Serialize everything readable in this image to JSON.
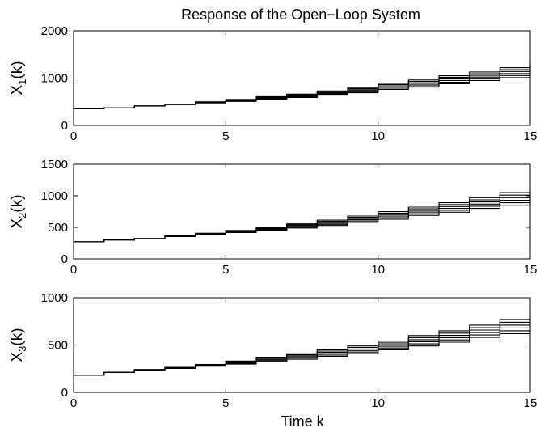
{
  "figure_title": "Response of the Open−Loop System",
  "x_axis_label": "Time k",
  "chart_data": [
    {
      "type": "line",
      "subtype": "step",
      "title": "Response of the Open−Loop System",
      "xlabel": "",
      "ylabel_main": "X",
      "ylabel_sub": "1",
      "ylabel_tail": "(k)",
      "xlim": [
        0,
        15
      ],
      "ylim": [
        0,
        2000
      ],
      "xticks": [
        0,
        5,
        10,
        15
      ],
      "yticks": [
        0,
        1000,
        2000
      ],
      "grid": false,
      "start": {
        "x": 0,
        "y": 350
      },
      "steps": [
        {
          "x": 1,
          "ys": [
            370
          ]
        },
        {
          "x": 2,
          "ys": [
            408,
            412
          ]
        },
        {
          "x": 3,
          "ys": [
            440,
            446,
            452
          ]
        },
        {
          "x": 4,
          "ys": [
            475,
            482,
            490,
            498
          ]
        },
        {
          "x": 5,
          "ys": [
            508,
            518,
            528,
            538,
            548
          ]
        },
        {
          "x": 6,
          "ys": [
            545,
            558,
            570,
            582,
            595,
            608
          ]
        },
        {
          "x": 7,
          "ys": [
            590,
            605,
            620,
            634,
            648,
            662
          ]
        },
        {
          "x": 8,
          "ys": [
            640,
            658,
            676,
            694,
            712,
            730
          ]
        },
        {
          "x": 9,
          "ys": [
            690,
            712,
            734,
            756,
            778,
            800
          ]
        },
        {
          "x": 10,
          "ys": [
            760,
            786,
            812,
            838,
            864,
            890
          ]
        },
        {
          "x": 11,
          "ys": [
            810,
            840,
            870,
            900,
            930,
            960
          ]
        },
        {
          "x": 12,
          "ys": [
            880,
            914,
            948,
            982,
            1016,
            1050
          ]
        },
        {
          "x": 13,
          "ys": [
            950,
            986,
            1022,
            1058,
            1094,
            1130
          ]
        },
        {
          "x": 14,
          "ys": [
            1010,
            1055,
            1095,
            1140,
            1180,
            1220
          ]
        },
        {
          "x": 15,
          "ys": [
            1110,
            1160,
            1210,
            1260,
            1310,
            1360
          ]
        }
      ]
    },
    {
      "type": "line",
      "subtype": "step",
      "xlabel": "",
      "ylabel_main": "X",
      "ylabel_sub": "2",
      "ylabel_tail": "(k)",
      "xlim": [
        0,
        15
      ],
      "ylim": [
        0,
        1500
      ],
      "xticks": [
        0,
        5,
        10,
        15
      ],
      "yticks": [
        0,
        500,
        1000,
        1500
      ],
      "grid": false,
      "start": {
        "x": 0,
        "y": 270
      },
      "steps": [
        {
          "x": 1,
          "ys": [
            300
          ]
        },
        {
          "x": 2,
          "ys": [
            318,
            322
          ]
        },
        {
          "x": 3,
          "ys": [
            352,
            358,
            364
          ]
        },
        {
          "x": 4,
          "ys": [
            385,
            392,
            398,
            405
          ]
        },
        {
          "x": 5,
          "ys": [
            418,
            426,
            434,
            442,
            450
          ]
        },
        {
          "x": 6,
          "ys": [
            450,
            460,
            470,
            480,
            490,
            500
          ]
        },
        {
          "x": 7,
          "ys": [
            490,
            503,
            516,
            529,
            542,
            555
          ]
        },
        {
          "x": 8,
          "ys": [
            530,
            547,
            564,
            581,
            598,
            615
          ]
        },
        {
          "x": 9,
          "ys": [
            580,
            600,
            620,
            640,
            660,
            680
          ]
        },
        {
          "x": 10,
          "ys": [
            630,
            654,
            678,
            702,
            726,
            750
          ]
        },
        {
          "x": 11,
          "ys": [
            690,
            716,
            742,
            768,
            794,
            820
          ]
        },
        {
          "x": 12,
          "ys": [
            740,
            770,
            800,
            830,
            860,
            890
          ]
        },
        {
          "x": 13,
          "ys": [
            800,
            834,
            868,
            902,
            936,
            970
          ]
        },
        {
          "x": 14,
          "ys": [
            850,
            890,
            930,
            970,
            1010,
            1050
          ]
        },
        {
          "x": 15,
          "ys": [
            910,
            950,
            990,
            1030,
            1065,
            1100
          ]
        }
      ]
    },
    {
      "type": "line",
      "subtype": "step",
      "xlabel": "Time k",
      "ylabel_main": "X",
      "ylabel_sub": "3",
      "ylabel_tail": "(k)",
      "xlim": [
        0,
        15
      ],
      "ylim": [
        0,
        1000
      ],
      "xticks": [
        0,
        5,
        10,
        15
      ],
      "yticks": [
        0,
        500,
        1000
      ],
      "grid": false,
      "start": {
        "x": 0,
        "y": 180
      },
      "steps": [
        {
          "x": 1,
          "ys": [
            212
          ]
        },
        {
          "x": 2,
          "ys": [
            236,
            240
          ]
        },
        {
          "x": 3,
          "ys": [
            252,
            258,
            264
          ]
        },
        {
          "x": 4,
          "ys": [
            276,
            282,
            288,
            294
          ]
        },
        {
          "x": 5,
          "ys": [
            298,
            306,
            314,
            322,
            330
          ]
        },
        {
          "x": 6,
          "ys": [
            322,
            332,
            342,
            352,
            362,
            372
          ]
        },
        {
          "x": 7,
          "ys": [
            350,
            362,
            374,
            386,
            398,
            408
          ]
        },
        {
          "x": 8,
          "ys": [
            380,
            394,
            408,
            422,
            436,
            450
          ]
        },
        {
          "x": 9,
          "ys": [
            410,
            426,
            442,
            458,
            474,
            490
          ]
        },
        {
          "x": 10,
          "ys": [
            450,
            468,
            486,
            504,
            522,
            540
          ]
        },
        {
          "x": 11,
          "ys": [
            490,
            512,
            534,
            556,
            578,
            600
          ]
        },
        {
          "x": 12,
          "ys": [
            530,
            554,
            578,
            602,
            626,
            650
          ]
        },
        {
          "x": 13,
          "ys": [
            580,
            606,
            632,
            658,
            684,
            710
          ]
        },
        {
          "x": 14,
          "ys": [
            620,
            650,
            680,
            710,
            740,
            770
          ]
        },
        {
          "x": 15,
          "ys": [
            660,
            690,
            720,
            750,
            780,
            810
          ]
        }
      ]
    }
  ]
}
